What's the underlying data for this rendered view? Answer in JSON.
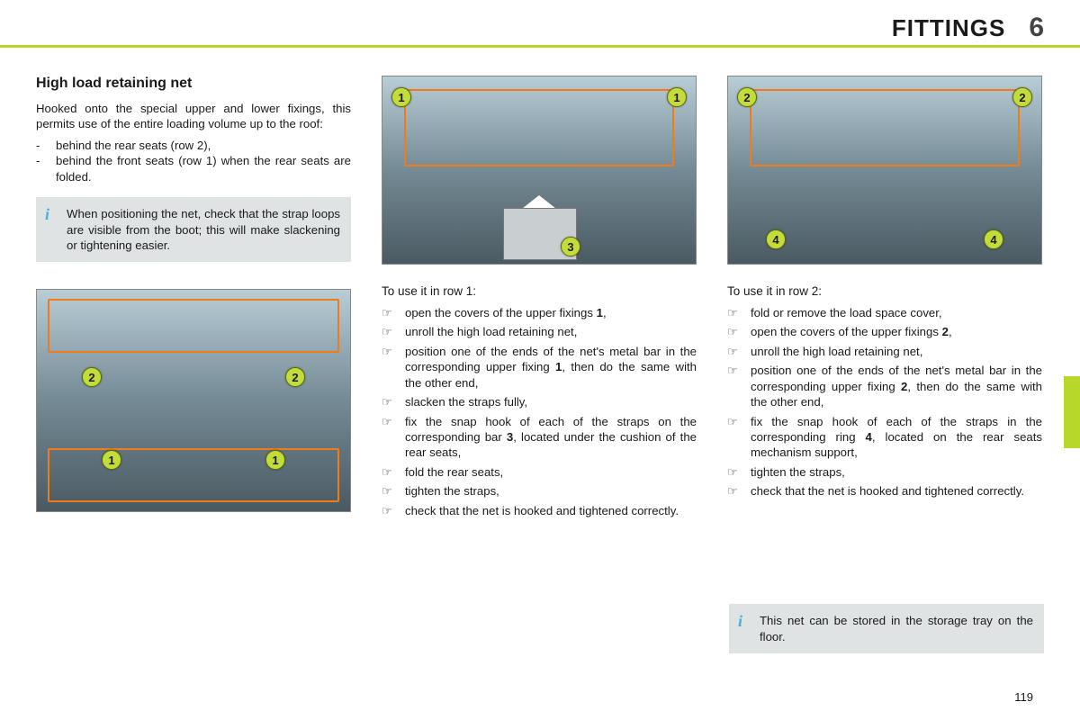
{
  "header": {
    "title": "FITTINGS",
    "chapter": "6"
  },
  "accent_color": "#b8d72b",
  "page_number": "119",
  "col1": {
    "title": "High load retaining net",
    "intro": "Hooked onto the special upper and lower fixings, this permits use of the entire loading volume up to the roof:",
    "bullets": [
      "behind the rear seats (row 2),",
      "behind the front seats (row 1) when the rear seats are folded."
    ],
    "info": "When positioning the net, check that the strap loops are visible from the boot; this will make slackening or tightening easier."
  },
  "col2": {
    "sub": "To use it in row 1:",
    "steps": [
      "open the covers of the upper fixings <b>1</b>,",
      "unroll the high load retaining net,",
      "position one of the ends of the net's metal bar in the corresponding upper fixing <b>1</b>, then do the same with the other end,",
      "slacken the straps fully,",
      "fix the snap hook of each of the straps on the corresponding bar <b>3</b>, located under the cushion of the rear seats,",
      "fold the rear seats,",
      "tighten the straps,",
      "check that the net is hooked and tightened correctly."
    ]
  },
  "col3": {
    "sub": "To use it in row 2:",
    "steps": [
      "fold or remove the load space cover,",
      "open the covers of the upper fixings <b>2</b>,",
      "unroll the high load retaining net,",
      "position one of the ends of the net's metal bar in the corresponding upper fixing <b>2</b>, then do the same with the other end,",
      "fix the snap hook of each of the straps in the corresponding ring <b>4</b>, located on the rear seats mechanism support,",
      "tighten the straps,",
      "check that the net is hooked and tightened correctly."
    ],
    "info": "This net can be stored in the storage tray on the floor."
  },
  "callouts": {
    "img1": {
      "tl": "2",
      "tr": "2",
      "bl": "1",
      "br": "1"
    },
    "img2": {
      "tl": "1",
      "tr": "1",
      "inset": "3"
    },
    "img3": {
      "tl": "2",
      "tr": "2",
      "bl": "4",
      "br": "4"
    }
  },
  "glyphs": {
    "dash": "-",
    "hand": "☞"
  }
}
